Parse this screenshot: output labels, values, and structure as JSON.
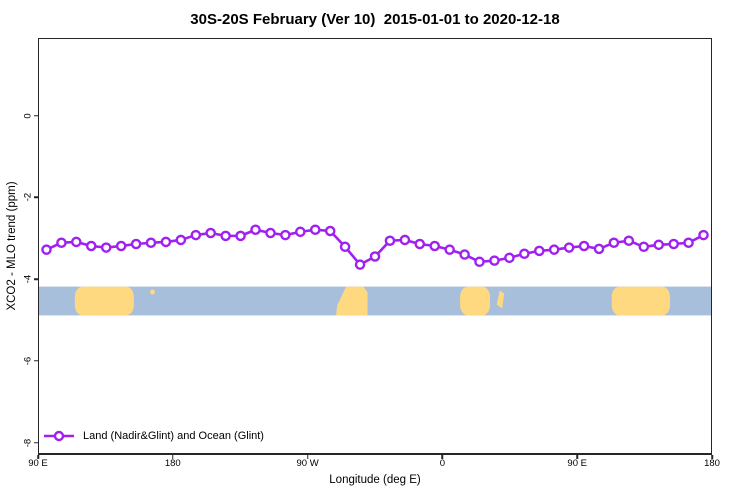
{
  "title": "30S-20S February (Ver 10)  2015-01-01 to 2020-12-18",
  "colors": {
    "line": "#A020F0",
    "marker_fill": "#FFFFFF",
    "ocean": "#A8BFDC",
    "land": "#FFD980",
    "axis": "#262626",
    "text": "#000000"
  },
  "legend": {
    "label": "Land (Nadir&Glint) and Ocean (Glint)"
  },
  "chart_data": {
    "type": "line",
    "title": "30S-20S February (Ver 10)  2015-01-01 to 2020-12-18",
    "xlabel": "Longitude (deg E)",
    "ylabel": "XCO2 - MLO trend (ppm)",
    "xlim": [
      90,
      540
    ],
    "ylim": [
      -8.3,
      1.9
    ],
    "grid": false,
    "legend_position": "bottom-left",
    "x_ticks": [
      {
        "lon": 90,
        "label": "90 E"
      },
      {
        "lon": 180,
        "label": "180"
      },
      {
        "lon": 270,
        "label": "90 W"
      },
      {
        "lon": 360,
        "label": "0"
      },
      {
        "lon": 450,
        "label": "90 E"
      },
      {
        "lon": 540,
        "label": "180"
      }
    ],
    "y_ticks": [
      {
        "v": 0,
        "label": "0"
      },
      {
        "v": -2,
        "label": "-2"
      },
      {
        "v": -4,
        "label": "-4"
      },
      {
        "v": -6,
        "label": "-6"
      },
      {
        "v": -8,
        "label": "-8"
      }
    ],
    "series": [
      {
        "name": "Land (Nadir&Glint) and Ocean (Glint)",
        "marker": "open-circle",
        "x": [
          95,
          105,
          115,
          125,
          135,
          145,
          155,
          165,
          175,
          185,
          195,
          205,
          215,
          225,
          235,
          245,
          255,
          265,
          275,
          285,
          295,
          305,
          315,
          325,
          335,
          345,
          355,
          365,
          375,
          385,
          395,
          405,
          415,
          425,
          435,
          445,
          455,
          465,
          475,
          485,
          495,
          505,
          515,
          525,
          535
        ],
        "values": [
          -3.29,
          -3.12,
          -3.1,
          -3.2,
          -3.24,
          -3.2,
          -3.15,
          -3.12,
          -3.1,
          -3.05,
          -2.93,
          -2.88,
          -2.95,
          -2.95,
          -2.8,
          -2.88,
          -2.93,
          -2.85,
          -2.8,
          -2.83,
          -3.22,
          -3.66,
          -3.46,
          -3.07,
          -3.05,
          -3.15,
          -3.2,
          -3.29,
          -3.41,
          -3.59,
          -3.56,
          -3.49,
          -3.39,
          -3.32,
          -3.29,
          -3.24,
          -3.2,
          -3.27,
          -3.12,
          -3.07,
          -3.22,
          -3.17,
          -3.15,
          -3.12,
          -2.93
        ]
      }
    ],
    "map_band": {
      "value_range": [
        -4.2,
        -4.91
      ],
      "land_patches": [
        {
          "name": "australia",
          "lon": [
            114,
            153.5
          ],
          "shape": "round"
        },
        {
          "name": "new-caledonia",
          "lon": [
            164.5,
            167.5
          ],
          "shape": "speck"
        },
        {
          "name": "south-america",
          "lon": [
            289,
            310
          ],
          "shape": "slant-left"
        },
        {
          "name": "southern-africa",
          "lon": [
            372,
            392
          ],
          "shape": "round"
        },
        {
          "name": "madagascar",
          "lon": [
            396.5,
            401.5
          ],
          "shape": "sliver"
        },
        {
          "name": "australia-repeat",
          "lon": [
            473.5,
            512.5
          ],
          "shape": "round"
        }
      ]
    }
  }
}
